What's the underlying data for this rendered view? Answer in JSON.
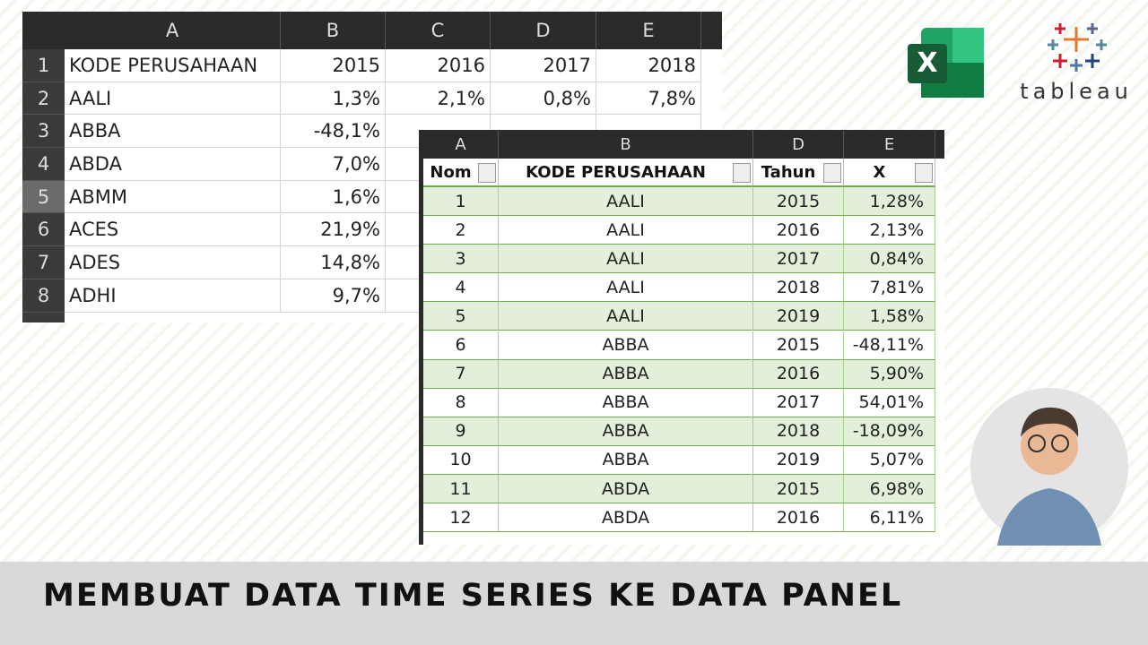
{
  "sheet1": {
    "columns": [
      "A",
      "B",
      "C",
      "D",
      "E"
    ],
    "row_numbers": [
      "1",
      "2",
      "3",
      "4",
      "5",
      "6",
      "7",
      "8"
    ],
    "rows": [
      [
        "KODE PERUSAHAAN",
        "2015",
        "2016",
        "2017",
        "2018"
      ],
      [
        "AALI",
        "1,3%",
        "2,1%",
        "0,8%",
        "7,8%"
      ],
      [
        "ABBA",
        "-48,1%"
      ],
      [
        "ABDA",
        "7,0%"
      ],
      [
        "ABMM",
        "1,6%"
      ],
      [
        "ACES",
        "21,9%"
      ],
      [
        "ADES",
        "14,8%"
      ],
      [
        "ADHI",
        "9,7%"
      ]
    ]
  },
  "sheet2": {
    "columns": [
      "A",
      "B",
      "D",
      "E"
    ],
    "headers": [
      "Nom",
      "KODE PERUSAHAAN",
      "Tahun",
      "X"
    ],
    "rows": [
      [
        "1",
        "AALI",
        "2015",
        "1,28%"
      ],
      [
        "2",
        "AALI",
        "2016",
        "2,13%"
      ],
      [
        "3",
        "AALI",
        "2017",
        "0,84%"
      ],
      [
        "4",
        "AALI",
        "2018",
        "7,81%"
      ],
      [
        "5",
        "AALI",
        "2019",
        "1,58%"
      ],
      [
        "6",
        "ABBA",
        "2015",
        "-48,11%"
      ],
      [
        "7",
        "ABBA",
        "2016",
        "5,90%"
      ],
      [
        "8",
        "ABBA",
        "2017",
        "54,01%"
      ],
      [
        "9",
        "ABBA",
        "2018",
        "-18,09%"
      ],
      [
        "10",
        "ABBA",
        "2019",
        "5,07%"
      ],
      [
        "11",
        "ABDA",
        "2015",
        "6,98%"
      ],
      [
        "12",
        "ABDA",
        "2016",
        "6,11%"
      ]
    ]
  },
  "logos": {
    "excel": "X",
    "tableau": "tableau"
  },
  "title": "MEMBUAT DATA TIME SERIES KE DATA PANEL"
}
